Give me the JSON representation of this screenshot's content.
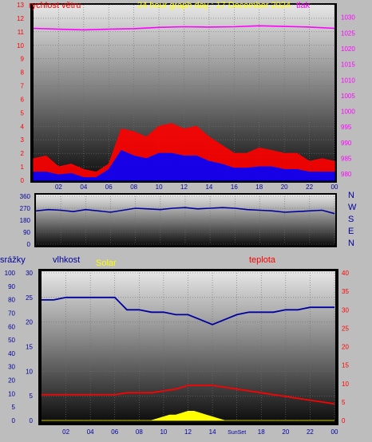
{
  "chart_data": [
    {
      "type": "line",
      "title": "24 hour graph day : 17 December 2024",
      "left_axis_title": "rychlost větru",
      "right_axis_title": "tlak",
      "x_ticks": [
        "02",
        "04",
        "06",
        "08",
        "10",
        "12",
        "14",
        "16",
        "18",
        "20",
        "22",
        "00"
      ],
      "y_left_ticks": [
        "0",
        "1",
        "2",
        "3",
        "4",
        "5",
        "6",
        "7",
        "8",
        "9",
        "10",
        "11",
        "12",
        "13"
      ],
      "y_left_range": [
        0,
        13
      ],
      "y_right_ticks": [
        "980",
        "985",
        "990",
        "995",
        "1000",
        "1005",
        "1010",
        "1015",
        "1020",
        "1025",
        "1030"
      ],
      "y_right_range": [
        978,
        1034
      ],
      "x_range": [
        0,
        24
      ],
      "series": [
        {
          "key": "pressure",
          "color": "#ff00ff",
          "axis": "right",
          "x": [
            0,
            2,
            4,
            6,
            8,
            10,
            12,
            14,
            16,
            18,
            20,
            22,
            24
          ],
          "values": [
            1026.5,
            1026.2,
            1026.0,
            1026.2,
            1026.4,
            1026.8,
            1027.0,
            1026.9,
            1027.0,
            1027.3,
            1027.1,
            1026.9,
            1026.5
          ]
        },
        {
          "key": "wind_gust",
          "color": "#ff0000",
          "axis": "left",
          "x": [
            0,
            1,
            2,
            3,
            4,
            5,
            6,
            7,
            8,
            9,
            10,
            11,
            12,
            13,
            14,
            15,
            16,
            17,
            18,
            19,
            20,
            21,
            22,
            23,
            24
          ],
          "values": [
            1.6,
            1.8,
            1.0,
            1.2,
            0.8,
            0.6,
            1.2,
            3.8,
            3.6,
            3.2,
            4.0,
            4.2,
            3.8,
            4.0,
            3.2,
            2.6,
            2.0,
            2.0,
            2.4,
            2.2,
            2.0,
            2.0,
            1.4,
            1.6,
            1.4
          ]
        },
        {
          "key": "wind_avg",
          "color": "#0000ff",
          "axis": "left",
          "x": [
            0,
            1,
            2,
            3,
            4,
            5,
            6,
            7,
            8,
            9,
            10,
            11,
            12,
            13,
            14,
            15,
            16,
            17,
            18,
            19,
            20,
            21,
            22,
            23,
            24
          ],
          "values": [
            0.6,
            0.6,
            0.4,
            0.5,
            0.2,
            0.2,
            0.8,
            2.2,
            1.8,
            1.6,
            2.0,
            2.0,
            1.8,
            1.8,
            1.4,
            1.2,
            0.9,
            0.9,
            1.0,
            1.0,
            0.8,
            0.8,
            0.6,
            0.6,
            0.6
          ]
        }
      ]
    },
    {
      "type": "scatter",
      "title": "",
      "y_left_ticks": [
        "0",
        "90",
        "180",
        "270",
        "360"
      ],
      "y_range": [
        0,
        360
      ],
      "compass_labels": [
        "N",
        "W",
        "S",
        "E",
        "N"
      ],
      "series": [
        {
          "key": "wind_direction",
          "color": "#0000a0",
          "x": [
            0,
            1,
            2,
            3,
            4,
            5,
            6,
            7,
            8,
            9,
            10,
            11,
            12,
            13,
            14,
            15,
            16,
            17,
            18,
            19,
            20,
            21,
            22,
            23,
            24
          ],
          "values": [
            250,
            260,
            255,
            245,
            260,
            250,
            240,
            255,
            270,
            265,
            260,
            270,
            275,
            265,
            270,
            275,
            270,
            260,
            255,
            250,
            240,
            245,
            250,
            255,
            230
          ]
        }
      ]
    },
    {
      "type": "line",
      "title": "",
      "axis_titles": {
        "precip": "srážky",
        "humidity": "vlhkost",
        "solar": "Solar",
        "temperature": "teplota"
      },
      "x_ticks": [
        "02",
        "04",
        "06",
        "08",
        "10",
        "12",
        "14",
        "SunSet",
        "18",
        "20",
        "22",
        "00"
      ],
      "y_precip_ticks": [
        "0",
        "5",
        "10",
        "20",
        "30",
        "40",
        "50",
        "60",
        "70",
        "80",
        "90",
        "100"
      ],
      "y_humidity_ticks": [
        "0",
        "5",
        "10",
        "15",
        "20",
        "25",
        "30"
      ],
      "y_temp_ticks": [
        "0",
        "5",
        "10",
        "15",
        "20",
        "25",
        "30",
        "35",
        "40"
      ],
      "humidity_range": [
        0,
        30
      ],
      "temperature_range": [
        0,
        40
      ],
      "series": [
        {
          "key": "humidity",
          "color": "#0000a0",
          "axis": "humidity",
          "x": [
            0,
            1,
            2,
            3,
            4,
            5,
            6,
            7,
            8,
            9,
            10,
            11,
            12,
            13,
            14,
            15,
            16,
            17,
            18,
            19,
            20,
            21,
            22,
            23,
            24
          ],
          "values": [
            24.5,
            24.5,
            25,
            25,
            25,
            25,
            25,
            22.5,
            22.5,
            22,
            22,
            21.5,
            21.5,
            20.5,
            19.5,
            20.5,
            21.5,
            22,
            22,
            22,
            22.5,
            22.5,
            23,
            23,
            23
          ]
        },
        {
          "key": "temperature",
          "color": "#ff0000",
          "axis": "temperature",
          "x": [
            0,
            1,
            2,
            3,
            4,
            5,
            6,
            7,
            8,
            9,
            10,
            11,
            12,
            13,
            14,
            15,
            16,
            17,
            18,
            19,
            20,
            21,
            22,
            23,
            24
          ],
          "values": [
            7,
            7,
            7,
            7,
            7,
            7,
            7,
            7.5,
            7.5,
            7.5,
            8,
            8.5,
            9.5,
            9.5,
            9.5,
            9,
            8.5,
            8,
            7.5,
            7,
            6.5,
            6,
            5.5,
            5,
            4.5
          ]
        },
        {
          "key": "solar",
          "color": "#ffff00",
          "axis": "temperature",
          "x": [
            0,
            7.5,
            8,
            9,
            9.5,
            10,
            10.5,
            11,
            11.5,
            12,
            12.5,
            13,
            13.5,
            14,
            14.5,
            15,
            24
          ],
          "values": [
            0,
            0,
            0,
            0,
            0.5,
            1,
            1.5,
            1.5,
            2,
            2.5,
            2.5,
            2,
            1.5,
            1,
            0.5,
            0,
            0
          ]
        }
      ]
    }
  ]
}
